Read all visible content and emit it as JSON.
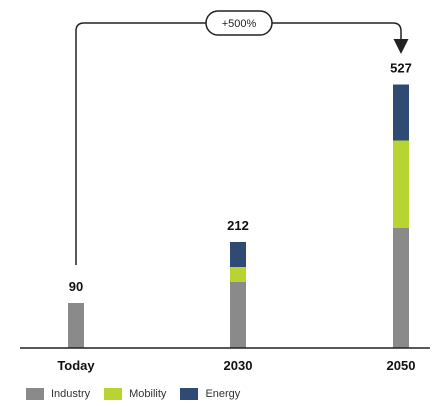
{
  "chart_data": {
    "type": "bar",
    "stacked": true,
    "categories": [
      "Today",
      "2030",
      "2050"
    ],
    "totals": [
      90,
      212,
      527
    ],
    "series": [
      {
        "name": "Industry",
        "color": "#8a8a8a",
        "values": [
          90,
          132,
          240
        ]
      },
      {
        "name": "Mobility",
        "color": "#b8d433",
        "values": [
          0,
          30,
          175
        ]
      },
      {
        "name": "Energy",
        "color": "#2f4b73",
        "values": [
          0,
          50,
          112
        ]
      }
    ],
    "annotation": {
      "text": "+500%",
      "from": "Today",
      "to": "2050"
    },
    "ylim": [
      0,
      600
    ],
    "title": "",
    "xlabel": "",
    "ylabel": "",
    "grid": false,
    "legend_position": "bottom-left"
  }
}
